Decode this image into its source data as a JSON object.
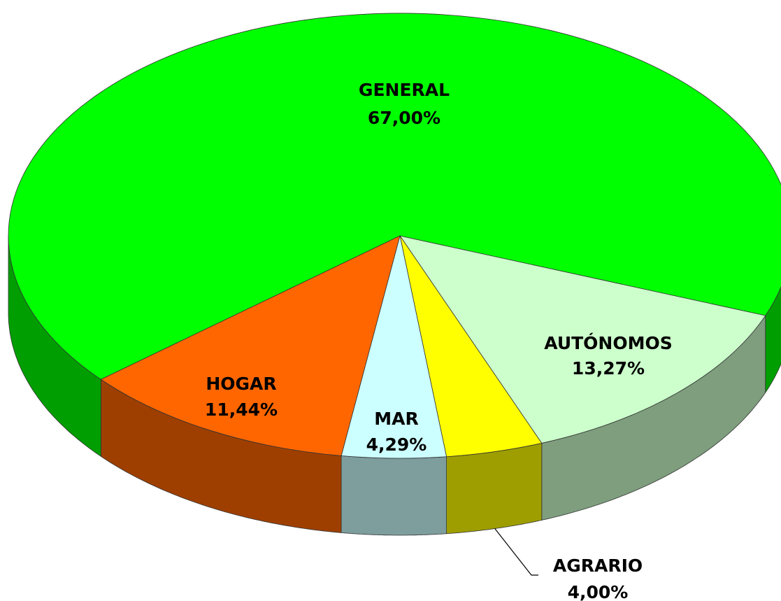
{
  "chart_data": {
    "type": "pie",
    "categories": [
      "AUTÓNOMOS",
      "AGRARIO",
      "MAR",
      "HOGAR",
      "GENERAL"
    ],
    "values": [
      13.27,
      4.0,
      4.29,
      11.44,
      67.0
    ],
    "value_labels": [
      "13,27%",
      "4,00%",
      "4,29%",
      "11,44%",
      "67,00%"
    ],
    "colors": [
      "#ccffcc",
      "#ffff00",
      "#ccffff",
      "#ff6600",
      "#00ff00"
    ]
  }
}
